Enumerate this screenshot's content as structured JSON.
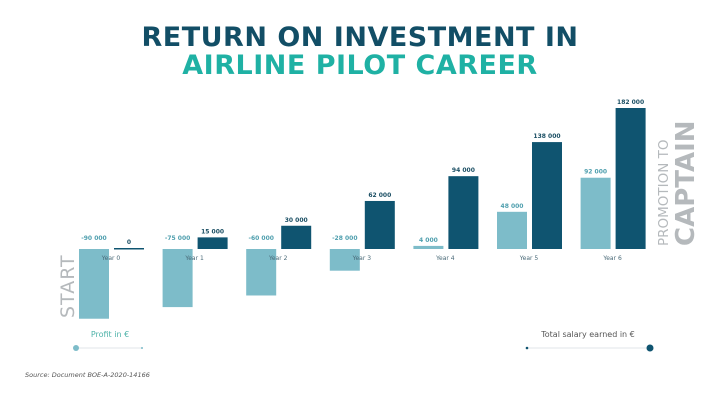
{
  "title_line1": "RETURN ON INVESTMENT IN",
  "title_line2": "AIRLINE PILOT CAREER",
  "colors": {
    "profit": "#7dbcc9",
    "salary": "#0f5470",
    "title_dark": "#124e66",
    "title_accent": "#1fb1a4",
    "side_text": "#b5b9bc"
  },
  "chart_data": {
    "type": "bar",
    "categories": [
      "Year 0",
      "Year 1",
      "Year 2",
      "Year 3",
      "Year 4",
      "Year 5",
      "Year 6"
    ],
    "series": [
      {
        "name": "Profit in €",
        "values": [
          -90000,
          -75000,
          -60000,
          -28000,
          4000,
          48000,
          92000
        ],
        "labels": [
          "-90 000",
          "-75 000",
          "-60 000",
          "-28 000",
          "4 000",
          "48 000",
          "92 000"
        ]
      },
      {
        "name": "Total salary earned in €",
        "values": [
          0,
          15000,
          30000,
          62000,
          94000,
          138000,
          182000
        ],
        "labels": [
          "0",
          "15 000",
          "30 000",
          "62 000",
          "94 000",
          "138 000",
          "182 000"
        ]
      }
    ],
    "annotations": {
      "start": "START",
      "promotion_line1": "PROMOTION TO",
      "promotion_line2": "CAPTAIN"
    },
    "legend_placement": "bottom",
    "grid": false
  },
  "source": "Source: Document BOE-A-2020-14166"
}
